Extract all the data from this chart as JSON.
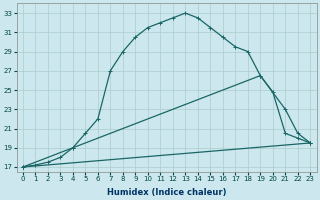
{
  "bg_color": "#cce8ee",
  "grid_color": "#aacccc",
  "line_color": "#1a6666",
  "xlabel": "Humidex (Indice chaleur)",
  "xlim": [
    -0.5,
    23.5
  ],
  "ylim": [
    16.5,
    34.0
  ],
  "yticks": [
    17,
    19,
    21,
    23,
    25,
    27,
    29,
    31,
    33
  ],
  "xticks": [
    0,
    1,
    2,
    3,
    4,
    5,
    6,
    7,
    8,
    9,
    10,
    11,
    12,
    13,
    14,
    15,
    16,
    17,
    18,
    19,
    20,
    21,
    22,
    23
  ],
  "curve1_x": [
    0,
    1,
    2,
    3,
    4,
    5,
    6,
    7,
    8,
    9,
    10,
    11,
    12,
    13,
    14,
    15,
    16,
    17,
    18,
    19,
    20,
    21,
    22,
    23
  ],
  "curve1_y": [
    17.0,
    17.2,
    17.5,
    18.0,
    19.0,
    20.5,
    22.0,
    27.0,
    29.0,
    30.5,
    31.5,
    32.0,
    32.5,
    33.0,
    32.5,
    31.5,
    30.5,
    29.5,
    29.0,
    26.5,
    24.8,
    20.5,
    20.0,
    19.5
  ],
  "curve2_x": [
    0,
    4,
    19,
    21,
    22,
    23
  ],
  "curve2_y": [
    17.0,
    19.0,
    26.5,
    23.0,
    20.5,
    19.5
  ],
  "curve3_x": [
    0,
    23
  ],
  "curve3_y": [
    17.0,
    19.5
  ],
  "marker": "+",
  "markersize": 3.5,
  "linewidth": 0.9,
  "tick_fontsize": 5.0,
  "xlabel_fontsize": 6.0,
  "tick_color": "#004444",
  "xlabel_color": "#003366"
}
